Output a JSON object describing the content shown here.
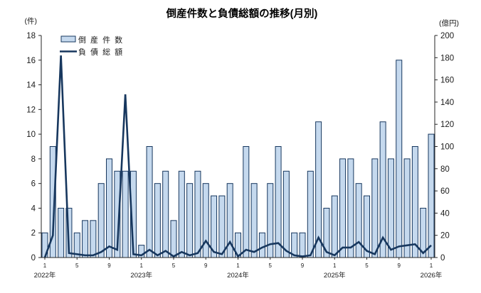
{
  "title": "倒産件数と負債総額の推移(月別)",
  "left_axis_unit": "(件)",
  "right_axis_unit": "(億円)",
  "legend": {
    "bar_label": "倒 産 件 数",
    "line_label": "負 債 総 額"
  },
  "colors": {
    "bar_fill": "#c5d9ee",
    "bar_border": "#17375e",
    "line": "#17375e",
    "axis": "#262626",
    "tick_text": "#1a1a1a",
    "title_text": "#000000"
  },
  "chart_data": {
    "type": "bar+line combo",
    "title": "倒産件数と負債総額の推移(月別)",
    "x_description": "Months from 2022-01 to 2026-01 (49 points)",
    "left_axis": {
      "unit": "件",
      "min": 0,
      "max": 18,
      "step": 2
    },
    "right_axis": {
      "unit": "億円",
      "min": 0,
      "max": 200,
      "step": 20
    },
    "grid": "off",
    "legend_position": "top-left inside plot",
    "series": [
      {
        "name": "倒産件数",
        "type": "bar",
        "axis": "left",
        "values": [
          2,
          9,
          4,
          4,
          2,
          3,
          3,
          6,
          8,
          7,
          7,
          7,
          1,
          9,
          6,
          7,
          3,
          7,
          6,
          7,
          6,
          5,
          5,
          6,
          2,
          9,
          6,
          2,
          6,
          9,
          7,
          2,
          2,
          7,
          11,
          4,
          5,
          8,
          8,
          6,
          5,
          8,
          11,
          8,
          16,
          8,
          9,
          4,
          10
        ]
      },
      {
        "name": "負債総額",
        "type": "line",
        "axis": "right",
        "values": [
          0,
          20,
          182,
          4,
          3,
          2,
          2,
          5,
          10,
          7,
          147,
          3,
          2,
          7,
          2,
          6,
          1,
          5,
          2,
          4,
          15,
          5,
          3,
          14,
          1,
          7,
          5,
          9,
          12,
          13,
          6,
          2,
          1,
          2,
          18,
          5,
          2,
          9,
          9,
          14,
          6,
          3,
          18,
          7,
          10,
          11,
          12,
          4,
          11
        ]
      }
    ],
    "years": [
      {
        "label": "2022年",
        "start_index": 0,
        "month_ticks": [
          {
            "offset": 0,
            "label": "1"
          },
          {
            "offset": 4,
            "label": "5"
          },
          {
            "offset": 8,
            "label": "9"
          }
        ]
      },
      {
        "label": "2023年",
        "start_index": 12,
        "month_ticks": [
          {
            "offset": 0,
            "label": "1"
          },
          {
            "offset": 4,
            "label": "5"
          },
          {
            "offset": 8,
            "label": "9"
          }
        ]
      },
      {
        "label": "2024年",
        "start_index": 24,
        "month_ticks": [
          {
            "offset": 0,
            "label": "1"
          },
          {
            "offset": 4,
            "label": "5"
          },
          {
            "offset": 8,
            "label": "9"
          }
        ]
      },
      {
        "label": "2025年",
        "start_index": 36,
        "month_ticks": [
          {
            "offset": 0,
            "label": "1"
          },
          {
            "offset": 4,
            "label": "5"
          },
          {
            "offset": 8,
            "label": "9"
          }
        ]
      },
      {
        "label": "2026年",
        "start_index": 48,
        "month_ticks": [
          {
            "offset": 0,
            "label": "1"
          }
        ]
      }
    ]
  }
}
